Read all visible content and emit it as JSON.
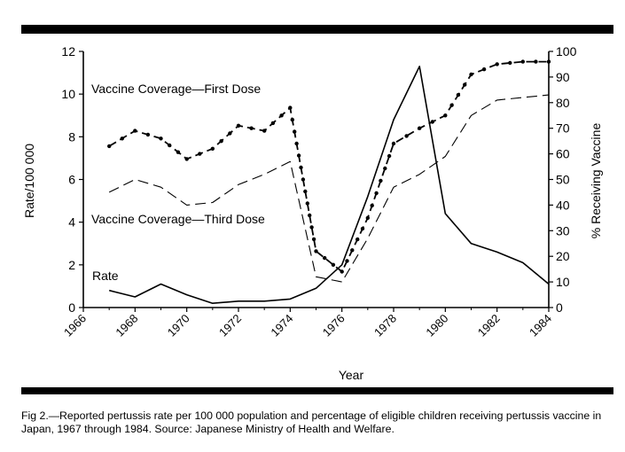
{
  "chart_data": {
    "type": "line",
    "xlabel": "Year",
    "ylabel_left": "Rate/100 000",
    "ylabel_right": "% Receiving Vaccine",
    "xlim": [
      1966,
      1984
    ],
    "ylim_left": [
      0,
      12
    ],
    "ylim_right": [
      0,
      100
    ],
    "x_ticks": [
      "1966",
      "1968",
      "1970",
      "1972",
      "1974",
      "1976",
      "1978",
      "1980",
      "1982",
      "1984"
    ],
    "y_left_ticks": [
      "0",
      "2",
      "4",
      "6",
      "8",
      "10",
      "12"
    ],
    "y_right_ticks": [
      "0",
      "10",
      "20",
      "30",
      "40",
      "50",
      "60",
      "70",
      "80",
      "90",
      "100"
    ],
    "grid": false,
    "series": [
      {
        "name": "Vaccine Coverage—First Dose",
        "axis": "right",
        "style": "dash-dot",
        "x": [
          1967,
          1968,
          1969,
          1970,
          1971,
          1972,
          1973,
          1974,
          1975,
          1976,
          1977,
          1978,
          1979,
          1980,
          1981,
          1982,
          1983,
          1984
        ],
        "y": [
          63,
          69,
          66,
          58,
          62,
          71,
          69,
          78,
          22,
          14,
          35,
          64,
          70,
          75,
          91,
          95,
          96,
          96
        ]
      },
      {
        "name": "Vaccine Coverage—Third Dose",
        "axis": "right",
        "style": "dashed",
        "x": [
          1967,
          1968,
          1969,
          1970,
          1971,
          1972,
          1973,
          1974,
          1975,
          1976,
          1977,
          1978,
          1979,
          1980,
          1981,
          1982,
          1983,
          1984
        ],
        "y": [
          45,
          50,
          47,
          40,
          41,
          48,
          52,
          57,
          12,
          10,
          27,
          47,
          52,
          59,
          75,
          81,
          82,
          83
        ]
      },
      {
        "name": "Rate",
        "axis": "left",
        "style": "solid",
        "x": [
          1967,
          1968,
          1969,
          1970,
          1971,
          1972,
          1973,
          1974,
          1975,
          1976,
          1977,
          1978,
          1979,
          1980,
          1981,
          1982,
          1983,
          1984
        ],
        "y": [
          0.8,
          0.5,
          1.1,
          0.6,
          0.2,
          0.3,
          0.3,
          0.4,
          0.9,
          2.0,
          5.2,
          8.8,
          11.3,
          4.4,
          3.0,
          2.6,
          2.1,
          1.1
        ]
      }
    ]
  },
  "caption": "Fig 2.—Reported pertussis rate per 100 000 population and percentage of eligible children receiving pertussis vaccine in Japan, 1967 through 1984. Source: Japanese Ministry of Health and Welfare."
}
